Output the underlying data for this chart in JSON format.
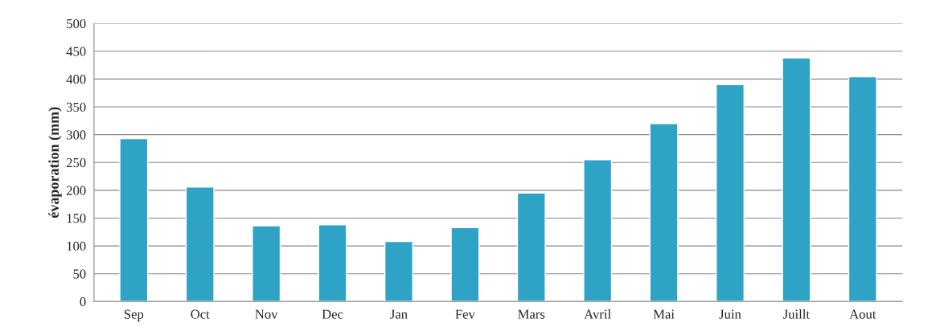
{
  "chart_data": {
    "type": "bar",
    "ylabel": "évaporation (mm)",
    "categories": [
      "Sep",
      "Oct",
      "Nov",
      "Dec",
      "Jan",
      "Fev",
      "Mars",
      "Avril",
      "Mai",
      "Juin",
      "Juillt",
      "Aout"
    ],
    "values": [
      293,
      206,
      136,
      138,
      108,
      133,
      195,
      255,
      320,
      390,
      438,
      404
    ],
    "color": "#2fa3c6",
    "ylim": [
      0,
      500
    ],
    "yticks": [
      0,
      50,
      100,
      150,
      200,
      250,
      300,
      350,
      400,
      450,
      500
    ],
    "grid": "y"
  }
}
